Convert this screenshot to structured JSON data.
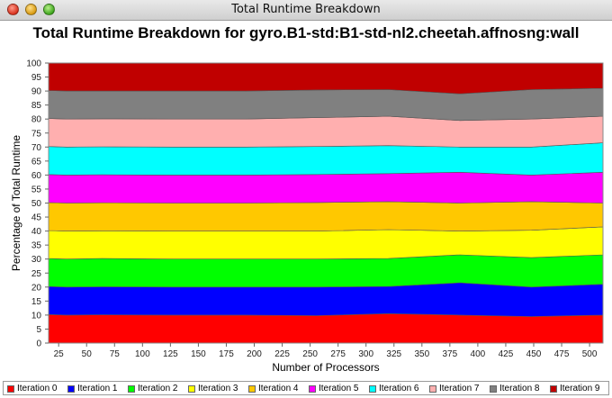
{
  "window": {
    "title": "Total Runtime Breakdown"
  },
  "chart_data": {
    "type": "area",
    "stacked": true,
    "title": "Total Runtime Breakdown for gyro.B1-std:B1-std-nl2.cheetah.affnosng:wall",
    "xlabel": "Number of Processors",
    "ylabel": "Percentage of Total Runtime",
    "x": [
      16,
      32,
      64,
      128,
      192,
      256,
      320,
      384,
      448,
      512
    ],
    "xticks": [
      25,
      50,
      75,
      100,
      125,
      150,
      175,
      200,
      225,
      250,
      275,
      300,
      325,
      350,
      375,
      400,
      425,
      450,
      475,
      500
    ],
    "xlim": [
      16,
      512
    ],
    "ylim": [
      0,
      100
    ],
    "yticks": [
      0,
      5,
      10,
      15,
      20,
      25,
      30,
      35,
      40,
      45,
      50,
      55,
      60,
      65,
      70,
      75,
      80,
      85,
      90,
      95,
      100
    ],
    "legend_position": "bottom",
    "series": [
      {
        "name": "Iteration 0",
        "color": "#ff0000",
        "values": [
          10.2,
          10.0,
          10.1,
          10.0,
          10.0,
          9.8,
          10.5,
          10.0,
          9.5,
          10.0
        ]
      },
      {
        "name": "Iteration 1",
        "color": "#0000ff",
        "values": [
          10.0,
          10.0,
          10.0,
          10.0,
          10.0,
          10.2,
          9.7,
          11.5,
          10.5,
          11.0
        ]
      },
      {
        "name": "Iteration 2",
        "color": "#00ff00",
        "values": [
          10.0,
          10.0,
          10.1,
          10.0,
          10.0,
          10.0,
          10.0,
          10.0,
          10.5,
          10.5
        ]
      },
      {
        "name": "Iteration 3",
        "color": "#ffff00",
        "values": [
          10.0,
          10.0,
          9.9,
          10.0,
          10.0,
          10.0,
          10.3,
          8.5,
          9.8,
          10.0
        ]
      },
      {
        "name": "Iteration 4",
        "color": "#ffc800",
        "values": [
          10.0,
          10.0,
          10.0,
          10.0,
          10.0,
          10.2,
          10.0,
          10.0,
          10.2,
          8.5
        ]
      },
      {
        "name": "Iteration 5",
        "color": "#ff00ff",
        "values": [
          10.0,
          10.0,
          10.0,
          10.0,
          10.0,
          10.0,
          10.0,
          11.0,
          9.5,
          11.0
        ]
      },
      {
        "name": "Iteration 6",
        "color": "#00ffff",
        "values": [
          10.0,
          10.0,
          10.0,
          10.0,
          10.0,
          10.0,
          10.0,
          9.0,
          10.0,
          10.5
        ]
      },
      {
        "name": "Iteration 7",
        "color": "#ffafaf",
        "values": [
          10.0,
          10.0,
          10.0,
          10.0,
          10.0,
          10.3,
          10.5,
          9.5,
          10.0,
          9.5
        ]
      },
      {
        "name": "Iteration 8",
        "color": "#808080",
        "values": [
          10.0,
          10.0,
          9.9,
          10.0,
          10.0,
          9.9,
          9.5,
          9.5,
          10.5,
          10.0
        ]
      },
      {
        "name": "Iteration 9",
        "color": "#c00000",
        "values": [
          9.8,
          10.0,
          10.0,
          10.0,
          10.0,
          9.6,
          9.5,
          11.0,
          9.5,
          9.0
        ]
      }
    ]
  }
}
